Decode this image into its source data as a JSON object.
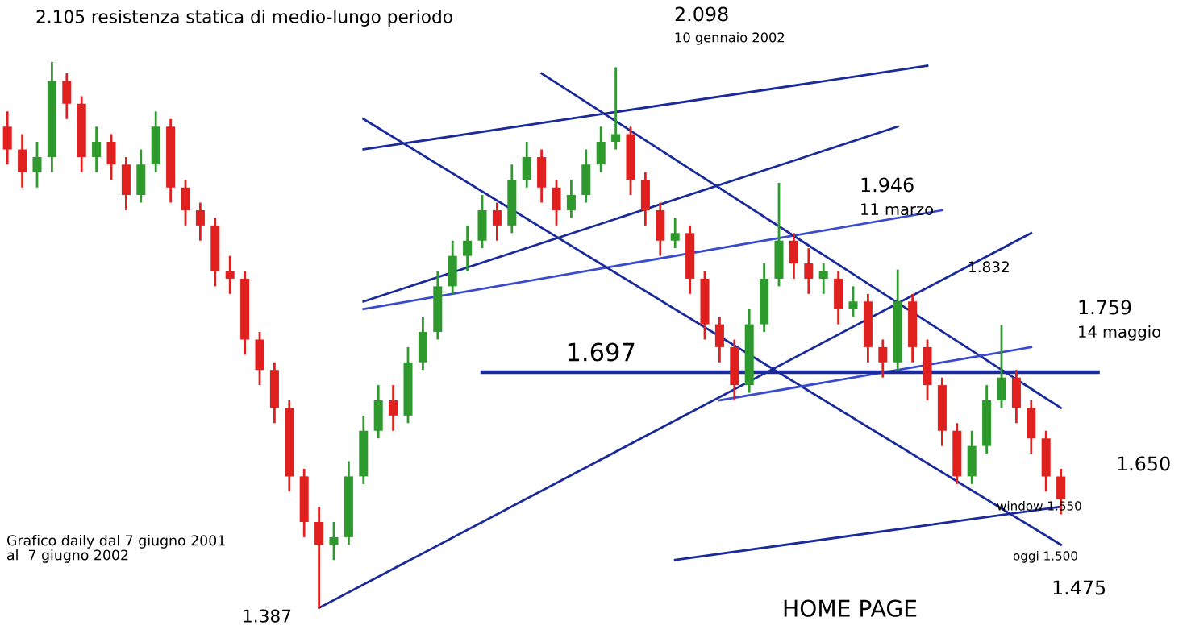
{
  "chart_data": {
    "type": "candlestick",
    "categories": [
      null,
      null,
      null,
      null,
      null,
      null,
      null,
      null,
      null,
      null,
      null,
      null,
      null,
      null,
      null,
      null,
      null,
      null,
      null,
      null,
      null,
      null,
      null,
      null,
      null,
      null,
      null,
      null,
      null,
      null,
      null,
      null,
      null,
      null,
      null,
      null,
      null,
      null,
      null,
      null,
      null,
      null,
      null,
      null,
      null,
      null,
      null,
      null,
      null,
      null,
      null,
      null,
      null,
      null,
      null,
      null,
      null,
      null,
      null,
      null,
      null,
      null,
      null,
      null,
      null,
      null,
      null,
      null,
      null,
      null,
      null,
      null
    ],
    "colors": [
      "#e0201e",
      "#e0201e",
      "#2e9a2e",
      "#2e9a2e",
      "#e0201e",
      "#e0201e",
      "#2e9a2e",
      "#e0201e",
      "#e0201e",
      "#2e9a2e",
      "#2e9a2e",
      "#e0201e",
      "#e0201e",
      "#e0201e",
      "#e0201e",
      "#e0201e",
      "#e0201e",
      "#e0201e",
      "#e0201e",
      "#e0201e",
      "#e0201e",
      "#e0201e",
      "#2e9a2e",
      "#2e9a2e",
      "#2e9a2e",
      "#2e9a2e",
      "#e0201e",
      "#2e9a2e",
      "#2e9a2e",
      "#2e9a2e",
      "#2e9a2e",
      "#2e9a2e",
      "#2e9a2e",
      "#e0201e",
      "#2e9a2e",
      "#2e9a2e",
      "#e0201e",
      "#e0201e",
      "#2e9a2e",
      "#2e9a2e",
      "#2e9a2e",
      "#2e9a2e",
      "#e0201e",
      "#e0201e",
      "#e0201e",
      "#2e9a2e",
      "#e0201e",
      "#e0201e",
      "#e0201e",
      "#e0201e",
      "#2e9a2e",
      "#2e9a2e",
      "#2e9a2e",
      "#e0201e",
      "#e0201e",
      "#2e9a2e",
      "#e0201e",
      "#2e9a2e",
      "#e0201e",
      "#e0201e",
      "#2e9a2e",
      "#e0201e",
      "#e0201e",
      "#e0201e",
      "#e0201e",
      "#2e9a2e",
      "#2e9a2e",
      "#2e9a2e",
      "#e0201e",
      "#e0201e",
      "#e0201e",
      "#e0201e"
    ],
    "ohlc": [
      [
        2.02,
        2.04,
        1.97,
        1.99
      ],
      [
        1.99,
        2.01,
        1.94,
        1.96
      ],
      [
        1.96,
        2.0,
        1.94,
        1.98
      ],
      [
        1.98,
        2.105,
        1.96,
        2.08
      ],
      [
        2.08,
        2.09,
        2.03,
        2.05
      ],
      [
        2.05,
        2.06,
        1.96,
        1.98
      ],
      [
        1.98,
        2.02,
        1.96,
        2.0
      ],
      [
        2.0,
        2.01,
        1.95,
        1.97
      ],
      [
        1.97,
        1.98,
        1.91,
        1.93
      ],
      [
        1.93,
        1.99,
        1.92,
        1.97
      ],
      [
        1.97,
        2.04,
        1.96,
        2.02
      ],
      [
        2.02,
        2.03,
        1.92,
        1.94
      ],
      [
        1.94,
        1.95,
        1.89,
        1.91
      ],
      [
        1.91,
        1.92,
        1.87,
        1.89
      ],
      [
        1.89,
        1.9,
        1.81,
        1.83
      ],
      [
        1.83,
        1.85,
        1.8,
        1.82
      ],
      [
        1.82,
        1.83,
        1.72,
        1.74
      ],
      [
        1.74,
        1.75,
        1.68,
        1.7
      ],
      [
        1.7,
        1.71,
        1.63,
        1.65
      ],
      [
        1.65,
        1.66,
        1.54,
        1.56
      ],
      [
        1.56,
        1.57,
        1.48,
        1.5
      ],
      [
        1.5,
        1.52,
        1.387,
        1.47
      ],
      [
        1.47,
        1.5,
        1.45,
        1.48
      ],
      [
        1.48,
        1.58,
        1.47,
        1.56
      ],
      [
        1.56,
        1.64,
        1.55,
        1.62
      ],
      [
        1.62,
        1.68,
        1.61,
        1.66
      ],
      [
        1.66,
        1.68,
        1.62,
        1.64
      ],
      [
        1.64,
        1.73,
        1.63,
        1.71
      ],
      [
        1.71,
        1.77,
        1.7,
        1.75
      ],
      [
        1.75,
        1.83,
        1.74,
        1.81
      ],
      [
        1.81,
        1.87,
        1.8,
        1.85
      ],
      [
        1.85,
        1.89,
        1.83,
        1.87
      ],
      [
        1.87,
        1.93,
        1.86,
        1.91
      ],
      [
        1.91,
        1.92,
        1.87,
        1.89
      ],
      [
        1.89,
        1.97,
        1.88,
        1.95
      ],
      [
        1.95,
        2.0,
        1.94,
        1.98
      ],
      [
        1.98,
        1.99,
        1.92,
        1.94
      ],
      [
        1.94,
        1.95,
        1.89,
        1.91
      ],
      [
        1.91,
        1.95,
        1.9,
        1.93
      ],
      [
        1.93,
        1.99,
        1.92,
        1.97
      ],
      [
        1.97,
        2.02,
        1.96,
        2.0
      ],
      [
        2.0,
        2.098,
        1.99,
        2.01
      ],
      [
        2.01,
        2.02,
        1.93,
        1.95
      ],
      [
        1.95,
        1.96,
        1.89,
        1.91
      ],
      [
        1.91,
        1.92,
        1.85,
        1.87
      ],
      [
        1.87,
        1.9,
        1.86,
        1.88
      ],
      [
        1.88,
        1.89,
        1.8,
        1.82
      ],
      [
        1.82,
        1.83,
        1.74,
        1.76
      ],
      [
        1.76,
        1.77,
        1.71,
        1.73
      ],
      [
        1.73,
        1.74,
        1.66,
        1.68
      ],
      [
        1.68,
        1.78,
        1.67,
        1.76
      ],
      [
        1.76,
        1.84,
        1.75,
        1.82
      ],
      [
        1.82,
        1.946,
        1.81,
        1.87
      ],
      [
        1.87,
        1.88,
        1.82,
        1.84
      ],
      [
        1.84,
        1.86,
        1.8,
        1.82
      ],
      [
        1.82,
        1.84,
        1.8,
        1.83
      ],
      [
        1.82,
        1.83,
        1.76,
        1.78
      ],
      [
        1.78,
        1.81,
        1.77,
        1.79
      ],
      [
        1.79,
        1.8,
        1.71,
        1.73
      ],
      [
        1.73,
        1.74,
        1.69,
        1.71
      ],
      [
        1.71,
        1.832,
        1.7,
        1.79
      ],
      [
        1.79,
        1.8,
        1.71,
        1.73
      ],
      [
        1.73,
        1.74,
        1.66,
        1.68
      ],
      [
        1.68,
        1.69,
        1.6,
        1.62
      ],
      [
        1.62,
        1.63,
        1.55,
        1.56
      ],
      [
        1.56,
        1.62,
        1.55,
        1.6
      ],
      [
        1.6,
        1.68,
        1.59,
        1.66
      ],
      [
        1.66,
        1.759,
        1.65,
        1.69
      ],
      [
        1.69,
        1.7,
        1.63,
        1.65
      ],
      [
        1.65,
        1.66,
        1.59,
        1.61
      ],
      [
        1.61,
        1.62,
        1.54,
        1.56
      ],
      [
        1.56,
        1.57,
        1.51,
        1.53
      ]
    ],
    "series": [
      {
        "type": "line",
        "color": "#1a2a9a",
        "values": [
          null,
          null,
          null,
          null,
          null,
          null,
          null,
          null,
          null,
          null,
          null,
          null,
          null,
          null,
          null,
          null,
          null,
          null,
          null,
          null,
          null,
          null,
          null,
          null,
          1.99,
          null,
          null,
          null,
          null,
          null,
          null,
          null,
          null,
          null,
          null,
          null,
          null,
          null,
          null,
          null,
          null,
          null,
          null,
          null,
          null,
          null,
          null,
          null,
          null,
          null,
          null,
          null,
          null,
          null,
          null,
          null,
          null,
          null,
          null,
          null,
          null,
          null,
          2.1,
          null,
          null,
          null,
          null,
          null,
          null,
          null,
          null,
          null
        ]
      },
      {
        "type": "line",
        "color": "#1a2a9a",
        "values": [
          null,
          null,
          null,
          null,
          null,
          null,
          null,
          null,
          null,
          null,
          null,
          null,
          null,
          null,
          null,
          null,
          null,
          null,
          null,
          null,
          null,
          null,
          null,
          null,
          1.79,
          null,
          null,
          null,
          null,
          null,
          null,
          null,
          null,
          null,
          null,
          null,
          null,
          null,
          null,
          null,
          null,
          null,
          null,
          null,
          null,
          null,
          null,
          null,
          null,
          null,
          null,
          null,
          null,
          null,
          null,
          null,
          null,
          null,
          null,
          null,
          2.02,
          null,
          null,
          null,
          null,
          null,
          null,
          null,
          null,
          null,
          null,
          null
        ]
      },
      {
        "type": "line",
        "color": "#3a4ad0",
        "values": [
          null,
          null,
          null,
          null,
          null,
          null,
          null,
          null,
          null,
          null,
          null,
          null,
          null,
          null,
          null,
          null,
          null,
          null,
          null,
          null,
          null,
          null,
          null,
          null,
          1.78,
          null,
          null,
          null,
          null,
          null,
          null,
          null,
          null,
          null,
          null,
          null,
          null,
          null,
          null,
          null,
          null,
          null,
          null,
          null,
          null,
          null,
          null,
          null,
          null,
          null,
          null,
          null,
          null,
          null,
          null,
          null,
          null,
          null,
          null,
          null,
          null,
          null,
          null,
          1.91,
          null,
          null,
          null,
          null,
          null,
          null,
          null,
          null
        ]
      },
      {
        "type": "line",
        "color": "#1a2a9a",
        "values": [
          null,
          null,
          null,
          null,
          null,
          null,
          null,
          null,
          null,
          null,
          null,
          null,
          null,
          null,
          null,
          null,
          null,
          null,
          null,
          null,
          null,
          1.387,
          null,
          null,
          null,
          null,
          null,
          null,
          null,
          null,
          null,
          null,
          null,
          null,
          null,
          null,
          null,
          null,
          null,
          null,
          null,
          null,
          null,
          null,
          null,
          null,
          null,
          null,
          null,
          null,
          null,
          null,
          null,
          null,
          null,
          null,
          null,
          null,
          null,
          null,
          null,
          null,
          null,
          null,
          null,
          null,
          null,
          null,
          null,
          1.88,
          null,
          null
        ]
      },
      {
        "type": "line",
        "color": "#1a2a9a",
        "values": [
          null,
          null,
          null,
          null,
          null,
          null,
          null,
          null,
          null,
          null,
          null,
          null,
          null,
          null,
          null,
          null,
          null,
          null,
          null,
          null,
          null,
          null,
          null,
          null,
          2.03,
          null,
          null,
          null,
          null,
          null,
          null,
          null,
          null,
          null,
          null,
          null,
          null,
          null,
          null,
          null,
          null,
          null,
          null,
          null,
          null,
          null,
          null,
          null,
          null,
          null,
          null,
          null,
          null,
          null,
          null,
          null,
          null,
          null,
          null,
          null,
          null,
          null,
          null,
          null,
          null,
          null,
          null,
          null,
          null,
          null,
          null,
          1.47
        ]
      },
      {
        "type": "line",
        "color": "#1a2a9a",
        "values": [
          null,
          null,
          null,
          null,
          null,
          null,
          null,
          null,
          null,
          null,
          null,
          null,
          null,
          null,
          null,
          null,
          null,
          null,
          null,
          null,
          null,
          null,
          null,
          null,
          null,
          null,
          null,
          null,
          null,
          null,
          null,
          null,
          null,
          null,
          null,
          null,
          2.09,
          null,
          null,
          null,
          null,
          null,
          null,
          null,
          null,
          null,
          null,
          null,
          null,
          null,
          null,
          null,
          null,
          null,
          null,
          null,
          null,
          null,
          null,
          null,
          null,
          null,
          null,
          null,
          null,
          null,
          null,
          null,
          null,
          null,
          null,
          1.65
        ]
      },
      {
        "type": "line",
        "color": "#1a2a9a",
        "values": [
          null,
          null,
          null,
          null,
          null,
          null,
          null,
          null,
          null,
          null,
          null,
          null,
          null,
          null,
          null,
          null,
          null,
          null,
          null,
          null,
          null,
          null,
          null,
          null,
          null,
          null,
          null,
          null,
          null,
          null,
          null,
          null,
          null,
          null,
          null,
          null,
          null,
          null,
          null,
          null,
          null,
          null,
          null,
          null,
          null,
          1.45,
          null,
          null,
          null,
          null,
          null,
          null,
          null,
          null,
          null,
          null,
          null,
          null,
          null,
          null,
          null,
          null,
          null,
          null,
          null,
          null,
          null,
          null,
          null,
          null,
          null,
          1.52
        ]
      },
      {
        "type": "line",
        "color": "#3a4ad0",
        "values": [
          null,
          null,
          null,
          null,
          null,
          null,
          null,
          null,
          null,
          null,
          null,
          null,
          null,
          null,
          null,
          null,
          null,
          null,
          null,
          null,
          null,
          null,
          null,
          null,
          null,
          null,
          null,
          null,
          null,
          null,
          null,
          null,
          null,
          null,
          null,
          null,
          null,
          null,
          null,
          null,
          null,
          null,
          null,
          null,
          null,
          null,
          null,
          null,
          1.66,
          null,
          null,
          null,
          null,
          null,
          null,
          null,
          null,
          null,
          null,
          null,
          null,
          null,
          null,
          null,
          null,
          null,
          null,
          null,
          null,
          1.73,
          null,
          null
        ]
      }
    ],
    "ref_lines": [
      {
        "axis": "y",
        "value": 1.697,
        "label": "1.697",
        "color": "#1a2a9a"
      }
    ],
    "annotations": [
      "2.105 resistenza statica di medio-lungo periodo",
      "2.098",
      "10 gennaio 2002",
      "1.946",
      "11 marzo",
      "1.832",
      "1.759",
      "14 maggio",
      "1.650",
      "window 1.550",
      "oggi 1.500",
      "1.475",
      "1.387",
      "Grafico daily dal 7 giugno 2001\nal  7 giugno 2002",
      "HOME PAGE"
    ]
  }
}
